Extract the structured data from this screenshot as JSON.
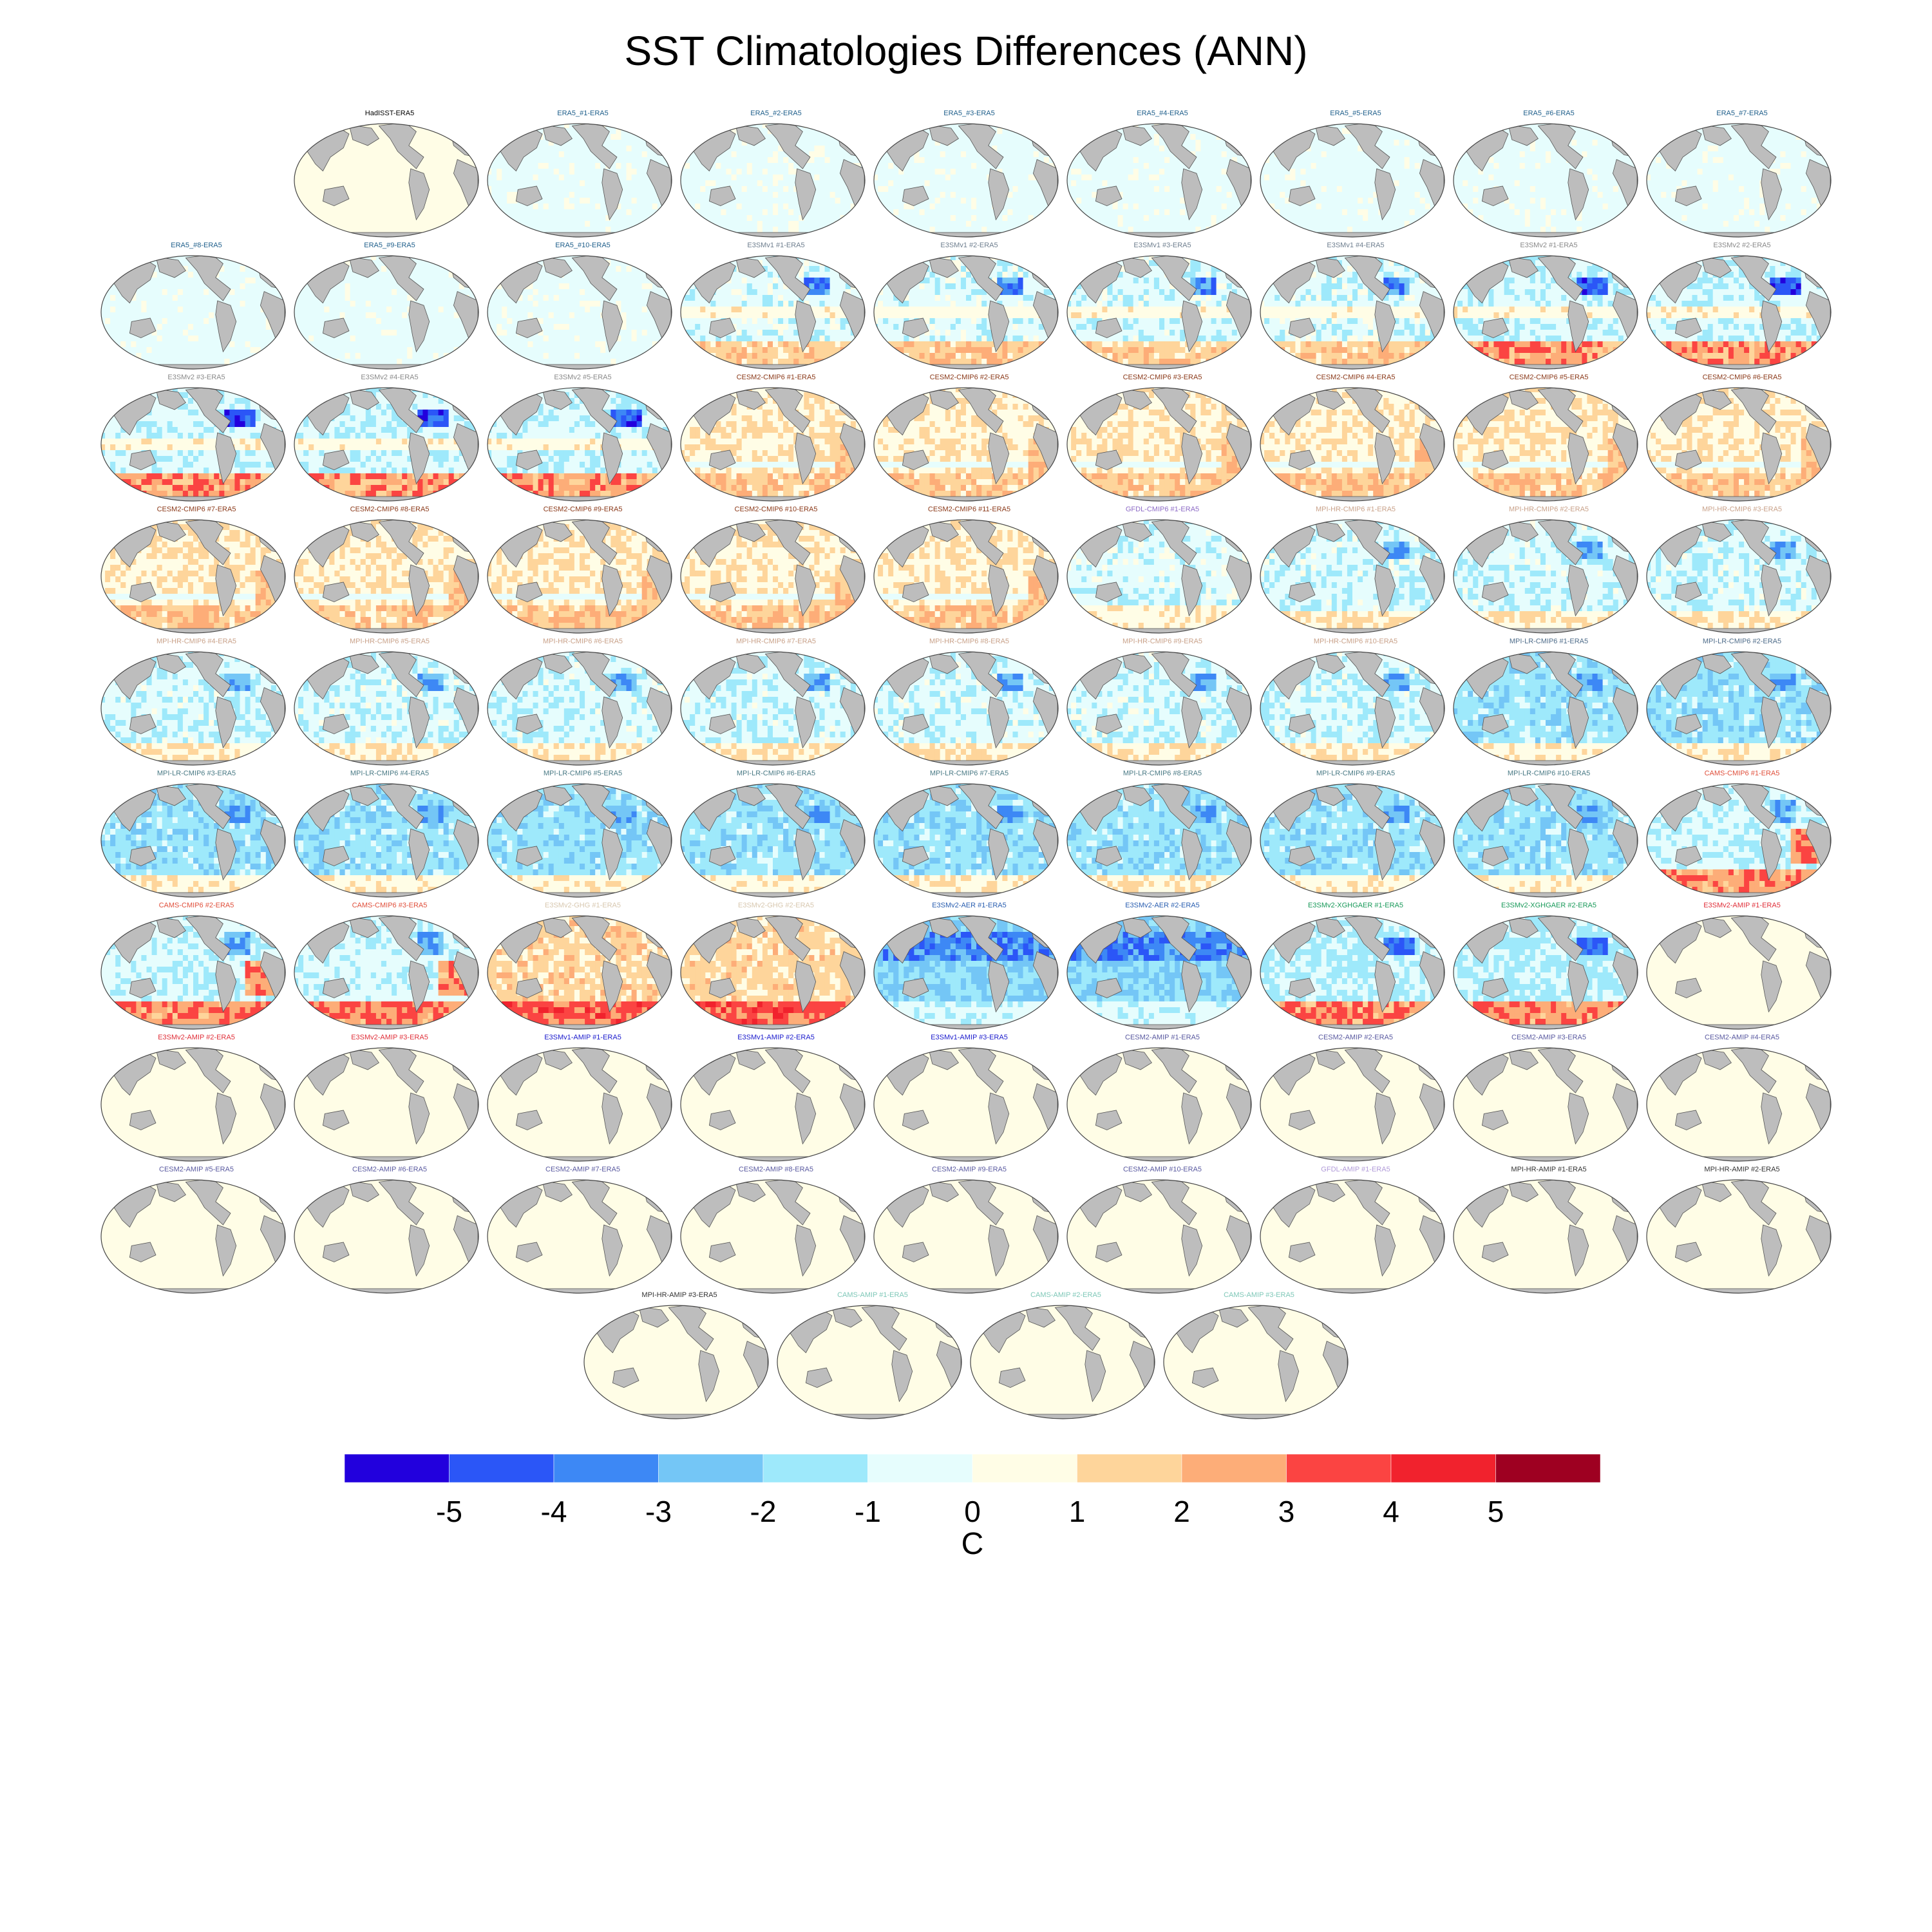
{
  "title": "SST Climatologies Differences (ANN)",
  "chart_data": {
    "type": "heatmap",
    "title": "SST Climatologies Differences (ANN)",
    "projection": "global ellipse (Pacific-centered)",
    "grid": false,
    "land_color": "#bdbdbd",
    "colorbar": {
      "orientation": "horizontal",
      "placement": "bottom",
      "units": "C",
      "tick_labels": [
        "-5",
        "-4",
        "-3",
        "-2",
        "-1",
        "0",
        "1",
        "2",
        "3",
        "4",
        "5"
      ],
      "colors": [
        "#2200dd",
        "#2b56f7",
        "#3d88f5",
        "#74c6f6",
        "#9ee9fb",
        "#e6fdfd",
        "#fffde6",
        "#fed59b",
        "#fdad78",
        "#fb4442",
        "#f1222d",
        "#9e0021"
      ]
    },
    "panels": [
      {
        "label": "HadISST-ERA5",
        "color": "#000000",
        "pattern": "neutral"
      },
      {
        "label": "ERA5_#1-ERA5",
        "color": "#1f5f8b",
        "pattern": "slight-cool"
      },
      {
        "label": "ERA5_#2-ERA5",
        "color": "#1f5f8b",
        "pattern": "slight-cool"
      },
      {
        "label": "ERA5_#3-ERA5",
        "color": "#1f5f8b",
        "pattern": "slight-cool"
      },
      {
        "label": "ERA5_#4-ERA5",
        "color": "#1f5f8b",
        "pattern": "slight-cool"
      },
      {
        "label": "ERA5_#5-ERA5",
        "color": "#1f5f8b",
        "pattern": "slight-cool"
      },
      {
        "label": "ERA5_#6-ERA5",
        "color": "#1f5f8b",
        "pattern": "slight-cool"
      },
      {
        "label": "ERA5_#7-ERA5",
        "color": "#1f5f8b",
        "pattern": "slight-cool"
      },
      {
        "label": "ERA5_#8-ERA5",
        "color": "#1f5f8b",
        "pattern": "slight-cool"
      },
      {
        "label": "ERA5_#9-ERA5",
        "color": "#1f5f8b",
        "pattern": "slight-cool"
      },
      {
        "label": "ERA5_#10-ERA5",
        "color": "#1f5f8b",
        "pattern": "slight-cool"
      },
      {
        "label": "E3SMv1 #1-ERA5",
        "color": "#6f7f8f",
        "pattern": "e3sm"
      },
      {
        "label": "E3SMv1 #2-ERA5",
        "color": "#6f7f8f",
        "pattern": "e3sm"
      },
      {
        "label": "E3SMv1 #3-ERA5",
        "color": "#6f7f8f",
        "pattern": "e3sm"
      },
      {
        "label": "E3SMv1 #4-ERA5",
        "color": "#6f7f8f",
        "pattern": "e3sm"
      },
      {
        "label": "E3SMv2 #1-ERA5",
        "color": "#8a8a8a",
        "pattern": "e3sm-warm"
      },
      {
        "label": "E3SMv2 #2-ERA5",
        "color": "#8a8a8a",
        "pattern": "e3sm-warm"
      },
      {
        "label": "E3SMv2 #3-ERA5",
        "color": "#8a8a8a",
        "pattern": "e3sm-warm"
      },
      {
        "label": "E3SMv2 #4-ERA5",
        "color": "#8a8a8a",
        "pattern": "e3sm-warm"
      },
      {
        "label": "E3SMv2 #5-ERA5",
        "color": "#8a8a8a",
        "pattern": "e3sm-warm"
      },
      {
        "label": "CESM2-CMIP6 #1-ERA5",
        "color": "#8b3a1a",
        "pattern": "cesm"
      },
      {
        "label": "CESM2-CMIP6 #2-ERA5",
        "color": "#8b3a1a",
        "pattern": "cesm"
      },
      {
        "label": "CESM2-CMIP6 #3-ERA5",
        "color": "#8b3a1a",
        "pattern": "cesm"
      },
      {
        "label": "CESM2-CMIP6 #4-ERA5",
        "color": "#8b3a1a",
        "pattern": "cesm"
      },
      {
        "label": "CESM2-CMIP6 #5-ERA5",
        "color": "#8b3a1a",
        "pattern": "cesm"
      },
      {
        "label": "CESM2-CMIP6 #6-ERA5",
        "color": "#8b3a1a",
        "pattern": "cesm"
      },
      {
        "label": "CESM2-CMIP6 #7-ERA5",
        "color": "#8b3a1a",
        "pattern": "cesm"
      },
      {
        "label": "CESM2-CMIP6 #8-ERA5",
        "color": "#8b3a1a",
        "pattern": "cesm"
      },
      {
        "label": "CESM2-CMIP6 #9-ERA5",
        "color": "#8b3a1a",
        "pattern": "cesm"
      },
      {
        "label": "CESM2-CMIP6 #10-ERA5",
        "color": "#8b3a1a",
        "pattern": "cesm"
      },
      {
        "label": "CESM2-CMIP6 #11-ERA5",
        "color": "#8b3a1a",
        "pattern": "cesm"
      },
      {
        "label": "GFDL-CMIP6 #1-ERA5",
        "color": "#8d6bc6",
        "pattern": "gfdl"
      },
      {
        "label": "MPI-HR-CMIP6 #1-ERA5",
        "color": "#c9a28a",
        "pattern": "mpi"
      },
      {
        "label": "MPI-HR-CMIP6 #2-ERA5",
        "color": "#c9a28a",
        "pattern": "mpi"
      },
      {
        "label": "MPI-HR-CMIP6 #3-ERA5",
        "color": "#c9a28a",
        "pattern": "mpi"
      },
      {
        "label": "MPI-HR-CMIP6 #4-ERA5",
        "color": "#c9a28a",
        "pattern": "mpi"
      },
      {
        "label": "MPI-HR-CMIP6 #5-ERA5",
        "color": "#c9a28a",
        "pattern": "mpi"
      },
      {
        "label": "MPI-HR-CMIP6 #6-ERA5",
        "color": "#c9a28a",
        "pattern": "mpi"
      },
      {
        "label": "MPI-HR-CMIP6 #7-ERA5",
        "color": "#c9a28a",
        "pattern": "mpi"
      },
      {
        "label": "MPI-HR-CMIP6 #8-ERA5",
        "color": "#c9a28a",
        "pattern": "mpi"
      },
      {
        "label": "MPI-HR-CMIP6 #9-ERA5",
        "color": "#c9a28a",
        "pattern": "mpi"
      },
      {
        "label": "MPI-HR-CMIP6 #10-ERA5",
        "color": "#c9a28a",
        "pattern": "mpi"
      },
      {
        "label": "MPI-LR-CMIP6 #1-ERA5",
        "color": "#4f6d8a",
        "pattern": "mpi-lr"
      },
      {
        "label": "MPI-LR-CMIP6 #2-ERA5",
        "color": "#4f6d8a",
        "pattern": "mpi-lr"
      },
      {
        "label": "MPI-LR-CMIP6 #3-ERA5",
        "color": "#4a7a85",
        "pattern": "mpi-lr"
      },
      {
        "label": "MPI-LR-CMIP6 #4-ERA5",
        "color": "#4a7a85",
        "pattern": "mpi-lr"
      },
      {
        "label": "MPI-LR-CMIP6 #5-ERA5",
        "color": "#4a7a85",
        "pattern": "mpi-lr"
      },
      {
        "label": "MPI-LR-CMIP6 #6-ERA5",
        "color": "#4a7a85",
        "pattern": "mpi-lr"
      },
      {
        "label": "MPI-LR-CMIP6 #7-ERA5",
        "color": "#4a7a85",
        "pattern": "mpi-lr"
      },
      {
        "label": "MPI-LR-CMIP6 #8-ERA5",
        "color": "#4a7a85",
        "pattern": "mpi-lr"
      },
      {
        "label": "MPI-LR-CMIP6 #9-ERA5",
        "color": "#4a7a85",
        "pattern": "mpi-lr"
      },
      {
        "label": "MPI-LR-CMIP6 #10-ERA5",
        "color": "#4a7a85",
        "pattern": "mpi-lr"
      },
      {
        "label": "CAMS-CMIP6 #1-ERA5",
        "color": "#e0503c",
        "pattern": "cams"
      },
      {
        "label": "CAMS-CMIP6 #2-ERA5",
        "color": "#e0503c",
        "pattern": "cams"
      },
      {
        "label": "CAMS-CMIP6 #3-ERA5",
        "color": "#e0503c",
        "pattern": "cams"
      },
      {
        "label": "E3SMv2-GHG #1-ERA5",
        "color": "#d8c8b0",
        "pattern": "ghg"
      },
      {
        "label": "E3SMv2-GHG #2-ERA5",
        "color": "#d8c8b0",
        "pattern": "ghg"
      },
      {
        "label": "E3SMv2-AER #1-ERA5",
        "color": "#2b5fb0",
        "pattern": "aer"
      },
      {
        "label": "E3SMv2-AER #2-ERA5",
        "color": "#2b5fb0",
        "pattern": "aer"
      },
      {
        "label": "E3SMv2-XGHGAER #1-ERA5",
        "color": "#1a9a5a",
        "pattern": "xghg"
      },
      {
        "label": "E3SMv2-XGHGAER #2-ERA5",
        "color": "#1a9a5a",
        "pattern": "xghg"
      },
      {
        "label": "E3SMv2-AMIP #1-ERA5",
        "color": "#e0303a",
        "pattern": "neutral"
      },
      {
        "label": "E3SMv2-AMIP #2-ERA5",
        "color": "#e0303a",
        "pattern": "neutral"
      },
      {
        "label": "E3SMv2-AMIP #3-ERA5",
        "color": "#e0303a",
        "pattern": "neutral"
      },
      {
        "label": "E3SMv1-AMIP #1-ERA5",
        "color": "#1a1acc",
        "pattern": "neutral"
      },
      {
        "label": "E3SMv1-AMIP #2-ERA5",
        "color": "#1a1acc",
        "pattern": "neutral"
      },
      {
        "label": "E3SMv1-AMIP #3-ERA5",
        "color": "#1a1acc",
        "pattern": "neutral"
      },
      {
        "label": "CESM2-AMIP #1-ERA5",
        "color": "#5a5aa0",
        "pattern": "neutral"
      },
      {
        "label": "CESM2-AMIP #2-ERA5",
        "color": "#5a5aa0",
        "pattern": "neutral"
      },
      {
        "label": "CESM2-AMIP #3-ERA5",
        "color": "#5a5aa0",
        "pattern": "neutral"
      },
      {
        "label": "CESM2-AMIP #4-ERA5",
        "color": "#5a5aa0",
        "pattern": "neutral"
      },
      {
        "label": "CESM2-AMIP #5-ERA5",
        "color": "#5a5aa0",
        "pattern": "neutral"
      },
      {
        "label": "CESM2-AMIP #6-ERA5",
        "color": "#5a5aa0",
        "pattern": "neutral"
      },
      {
        "label": "CESM2-AMIP #7-ERA5",
        "color": "#5a5aa0",
        "pattern": "neutral"
      },
      {
        "label": "CESM2-AMIP #8-ERA5",
        "color": "#5a5aa0",
        "pattern": "neutral"
      },
      {
        "label": "CESM2-AMIP #9-ERA5",
        "color": "#5a5aa0",
        "pattern": "neutral"
      },
      {
        "label": "CESM2-AMIP #10-ERA5",
        "color": "#5a5aa0",
        "pattern": "neutral"
      },
      {
        "label": "GFDL-AMIP #1-ERA5",
        "color": "#b09ad8",
        "pattern": "neutral"
      },
      {
        "label": "MPI-HR-AMIP #1-ERA5",
        "color": "#333333",
        "pattern": "neutral"
      },
      {
        "label": "MPI-HR-AMIP #2-ERA5",
        "color": "#333333",
        "pattern": "neutral"
      },
      {
        "label": "MPI-HR-AMIP #3-ERA5",
        "color": "#333333",
        "pattern": "neutral"
      },
      {
        "label": "CAMS-AMIP #1-ERA5",
        "color": "#7fc8b8",
        "pattern": "neutral"
      },
      {
        "label": "CAMS-AMIP #2-ERA5",
        "color": "#7fc8b8",
        "pattern": "neutral"
      },
      {
        "label": "CAMS-AMIP #3-ERA5",
        "color": "#7fc8b8",
        "pattern": "neutral"
      }
    ]
  }
}
